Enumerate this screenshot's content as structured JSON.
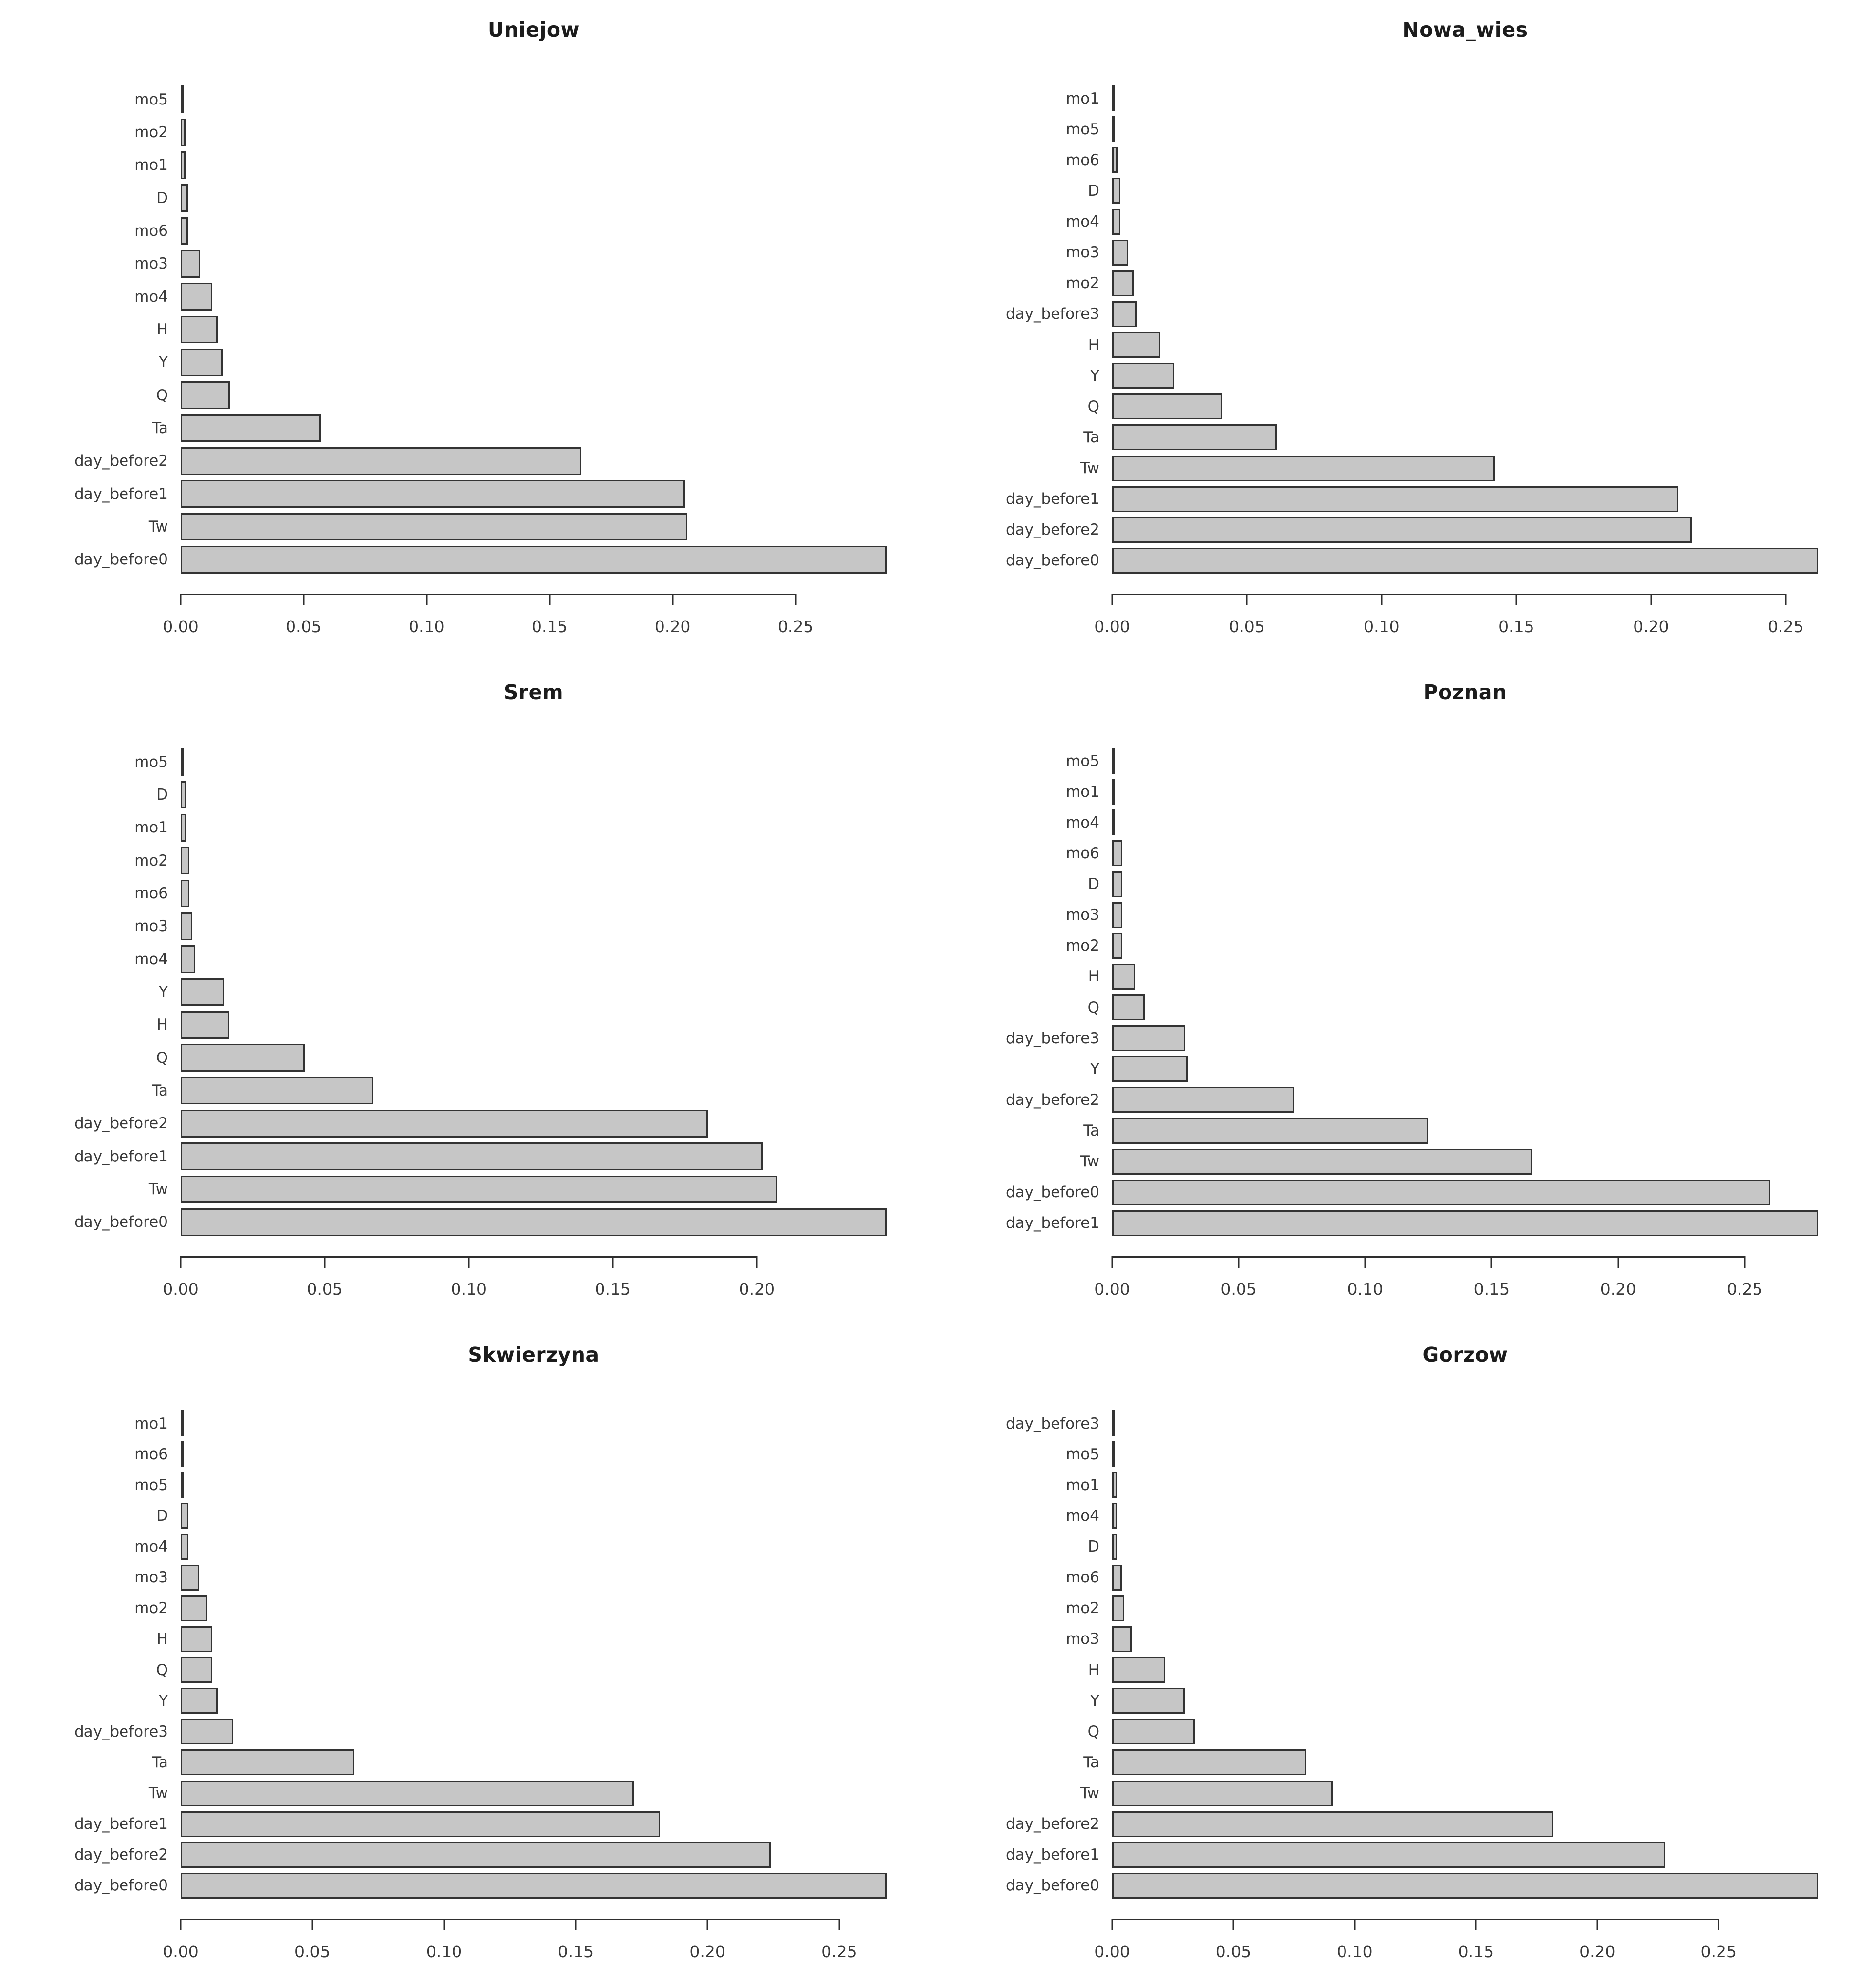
{
  "page": {
    "background": "#ffffff",
    "bar_fill": "#c6c6c6",
    "bar_border": "#333333",
    "text_color": "#3a3a3a",
    "title_color": "#1c1c1c"
  },
  "chart_data": [
    {
      "type": "bar",
      "orientation": "horizontal",
      "title": "Uniejow",
      "xlabel": "",
      "ylabel": "",
      "grid": false,
      "categories": [
        "mo5",
        "mo2",
        "mo1",
        "D",
        "mo6",
        "mo3",
        "mo4",
        "H",
        "Y",
        "Q",
        "Ta",
        "day_before2",
        "day_before1",
        "Tw",
        "day_before0"
      ],
      "values": [
        0.001,
        0.002,
        0.002,
        0.003,
        0.003,
        0.008,
        0.013,
        0.015,
        0.017,
        0.02,
        0.057,
        0.163,
        0.205,
        0.206,
        0.287
      ],
      "axis_max": 0.287,
      "ticks": [
        0,
        0.05,
        0.1,
        0.15,
        0.2,
        0.25
      ],
      "tick_labels": [
        "0.00",
        "0.05",
        "0.10",
        "0.15",
        "0.20",
        "0.25"
      ]
    },
    {
      "type": "bar",
      "orientation": "horizontal",
      "title": "Nowa_wies",
      "xlabel": "",
      "ylabel": "",
      "grid": false,
      "categories": [
        "mo1",
        "mo5",
        "mo6",
        "D",
        "mo4",
        "mo3",
        "mo2",
        "day_before3",
        "H",
        "Y",
        "Q",
        "Ta",
        "Tw",
        "day_before1",
        "day_before2",
        "day_before0"
      ],
      "values": [
        0.001,
        0.001,
        0.002,
        0.003,
        0.003,
        0.006,
        0.008,
        0.009,
        0.018,
        0.023,
        0.041,
        0.061,
        0.142,
        0.21,
        0.215,
        0.262
      ],
      "axis_max": 0.262,
      "ticks": [
        0,
        0.05,
        0.1,
        0.15,
        0.2,
        0.25
      ],
      "tick_labels": [
        "0.00",
        "0.05",
        "0.10",
        "0.15",
        "0.20",
        "0.25"
      ]
    },
    {
      "type": "bar",
      "orientation": "horizontal",
      "title": "Srem",
      "xlabel": "",
      "ylabel": "",
      "grid": false,
      "categories": [
        "mo5",
        "D",
        "mo1",
        "mo2",
        "mo6",
        "mo3",
        "mo4",
        "Y",
        "H",
        "Q",
        "Ta",
        "day_before2",
        "day_before1",
        "Tw",
        "day_before0"
      ],
      "values": [
        0.001,
        0.002,
        0.002,
        0.003,
        0.003,
        0.004,
        0.005,
        0.015,
        0.017,
        0.043,
        0.067,
        0.183,
        0.202,
        0.207,
        0.245
      ],
      "axis_max": 0.245,
      "ticks": [
        0,
        0.05,
        0.1,
        0.15,
        0.2
      ],
      "tick_labels": [
        "0.00",
        "0.05",
        "0.10",
        "0.15",
        "0.20"
      ]
    },
    {
      "type": "bar",
      "orientation": "horizontal",
      "title": "Poznan",
      "xlabel": "",
      "ylabel": "",
      "grid": false,
      "categories": [
        "mo5",
        "mo1",
        "mo4",
        "mo6",
        "D",
        "mo3",
        "mo2",
        "H",
        "Q",
        "day_before3",
        "Y",
        "day_before2",
        "Ta",
        "Tw",
        "day_before0",
        "day_before1"
      ],
      "values": [
        0.001,
        0.001,
        0.001,
        0.004,
        0.004,
        0.004,
        0.004,
        0.009,
        0.013,
        0.029,
        0.03,
        0.072,
        0.125,
        0.166,
        0.26,
        0.279
      ],
      "axis_max": 0.279,
      "ticks": [
        0,
        0.05,
        0.1,
        0.15,
        0.2,
        0.25
      ],
      "tick_labels": [
        "0.00",
        "0.05",
        "0.10",
        "0.15",
        "0.20",
        "0.25"
      ]
    },
    {
      "type": "bar",
      "orientation": "horizontal",
      "title": "Skwierzyna",
      "xlabel": "",
      "ylabel": "",
      "grid": false,
      "categories": [
        "mo1",
        "mo6",
        "mo5",
        "D",
        "mo4",
        "mo3",
        "mo2",
        "H",
        "Q",
        "Y",
        "day_before3",
        "Ta",
        "Tw",
        "day_before1",
        "day_before2",
        "day_before0"
      ],
      "values": [
        0.001,
        0.001,
        0.001,
        0.003,
        0.003,
        0.007,
        0.01,
        0.012,
        0.012,
        0.014,
        0.02,
        0.066,
        0.172,
        0.182,
        0.224,
        0.268
      ],
      "axis_max": 0.268,
      "ticks": [
        0,
        0.05,
        0.1,
        0.15,
        0.2,
        0.25
      ],
      "tick_labels": [
        "0.00",
        "0.05",
        "0.10",
        "0.15",
        "0.20",
        "0.25"
      ]
    },
    {
      "type": "bar",
      "orientation": "horizontal",
      "title": "Gorzow",
      "xlabel": "",
      "ylabel": "",
      "grid": false,
      "categories": [
        "day_before3",
        "mo5",
        "mo1",
        "mo4",
        "D",
        "mo6",
        "mo2",
        "mo3",
        "H",
        "Y",
        "Q",
        "Ta",
        "Tw",
        "day_before2",
        "day_before1",
        "day_before0"
      ],
      "values": [
        0.001,
        0.001,
        0.002,
        0.002,
        0.002,
        0.004,
        0.005,
        0.008,
        0.022,
        0.03,
        0.034,
        0.08,
        0.091,
        0.182,
        0.228,
        0.291
      ],
      "axis_max": 0.291,
      "ticks": [
        0,
        0.05,
        0.1,
        0.15,
        0.2,
        0.25
      ],
      "tick_labels": [
        "0.00",
        "0.05",
        "0.10",
        "0.15",
        "0.20",
        "0.25"
      ]
    }
  ]
}
